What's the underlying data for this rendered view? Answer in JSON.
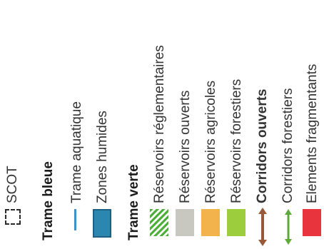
{
  "legend": {
    "scot": {
      "label": "SCOT",
      "icon": "dashed-square-icon"
    },
    "trame_bleue": {
      "title": "Trame bleue",
      "items": [
        {
          "label": "Trame aquatique",
          "icon": "blue-line-icon",
          "color": "#3f93c4"
        },
        {
          "label": "Zones humides",
          "icon": "blue-box-icon",
          "color": "#2b86b0"
        }
      ]
    },
    "trame_verte": {
      "title": "Trame verte",
      "items": [
        {
          "label": "Réservoirs réglementaires",
          "icon": "hatched-green-icon",
          "color": "#4caf3a"
        },
        {
          "label": "Réservoirs ouverts",
          "icon": "grey-box-icon",
          "color": "#c9c8c0"
        },
        {
          "label": "Réservoirs agricoles",
          "icon": "orange-box-icon",
          "color": "#f2b34c"
        },
        {
          "label": "Réservoirs forestiers",
          "icon": "lime-box-icon",
          "color": "#9ccd3c"
        },
        {
          "label": "Corridors ouverts",
          "icon": "brown-double-arrow-icon",
          "color": "#9a5a3a"
        },
        {
          "label": "Corridors forestiers",
          "icon": "green-double-arrow-icon",
          "color": "#5fa83a"
        },
        {
          "label": "Elements fragmentants",
          "icon": "red-box-icon",
          "color": "#e8353d"
        }
      ]
    }
  }
}
